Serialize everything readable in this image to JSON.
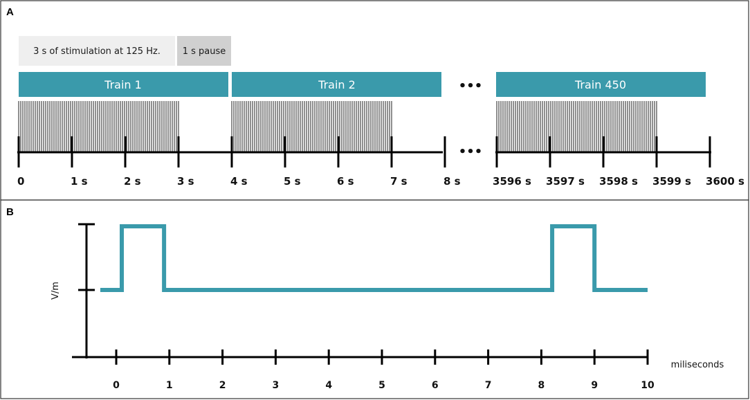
{
  "panel_a": {
    "letter": "A",
    "legend": {
      "stim_label": "3 s of stimulation at 125 Hz.",
      "pause_label": "1 s pause",
      "stim_color": "#efefef",
      "pause_color": "#d0d0d0"
    },
    "trains": [
      {
        "label": "Train 1"
      },
      {
        "label": "Train 2"
      },
      {
        "label": "Train 450"
      }
    ],
    "train_color": "#3a9aab",
    "ellipsis_top": "•••",
    "ellipsis_axis": "•••",
    "axis1_ticks": [
      "0",
      "1 s",
      "2 s",
      "3 s",
      "4 s",
      "5 s",
      "6 s",
      "7 s",
      "8 s"
    ],
    "axis2_ticks": [
      "3596 s",
      "3597 s",
      "3598 s",
      "3599 s",
      "3600 s"
    ]
  },
  "panel_b": {
    "letter": "B",
    "ylabel": "V/m",
    "xlabel": "miliseconds",
    "x_ticks": [
      "0",
      "1",
      "2",
      "3",
      "4",
      "5",
      "6",
      "7",
      "8",
      "9",
      "10"
    ],
    "waveform_color": "#3a9aab",
    "pulses_ms": [
      [
        0,
        0.9
      ],
      [
        8.1,
        9.0
      ]
    ],
    "waveform_x_range_ms": [
      -0.3,
      10.0
    ]
  }
}
